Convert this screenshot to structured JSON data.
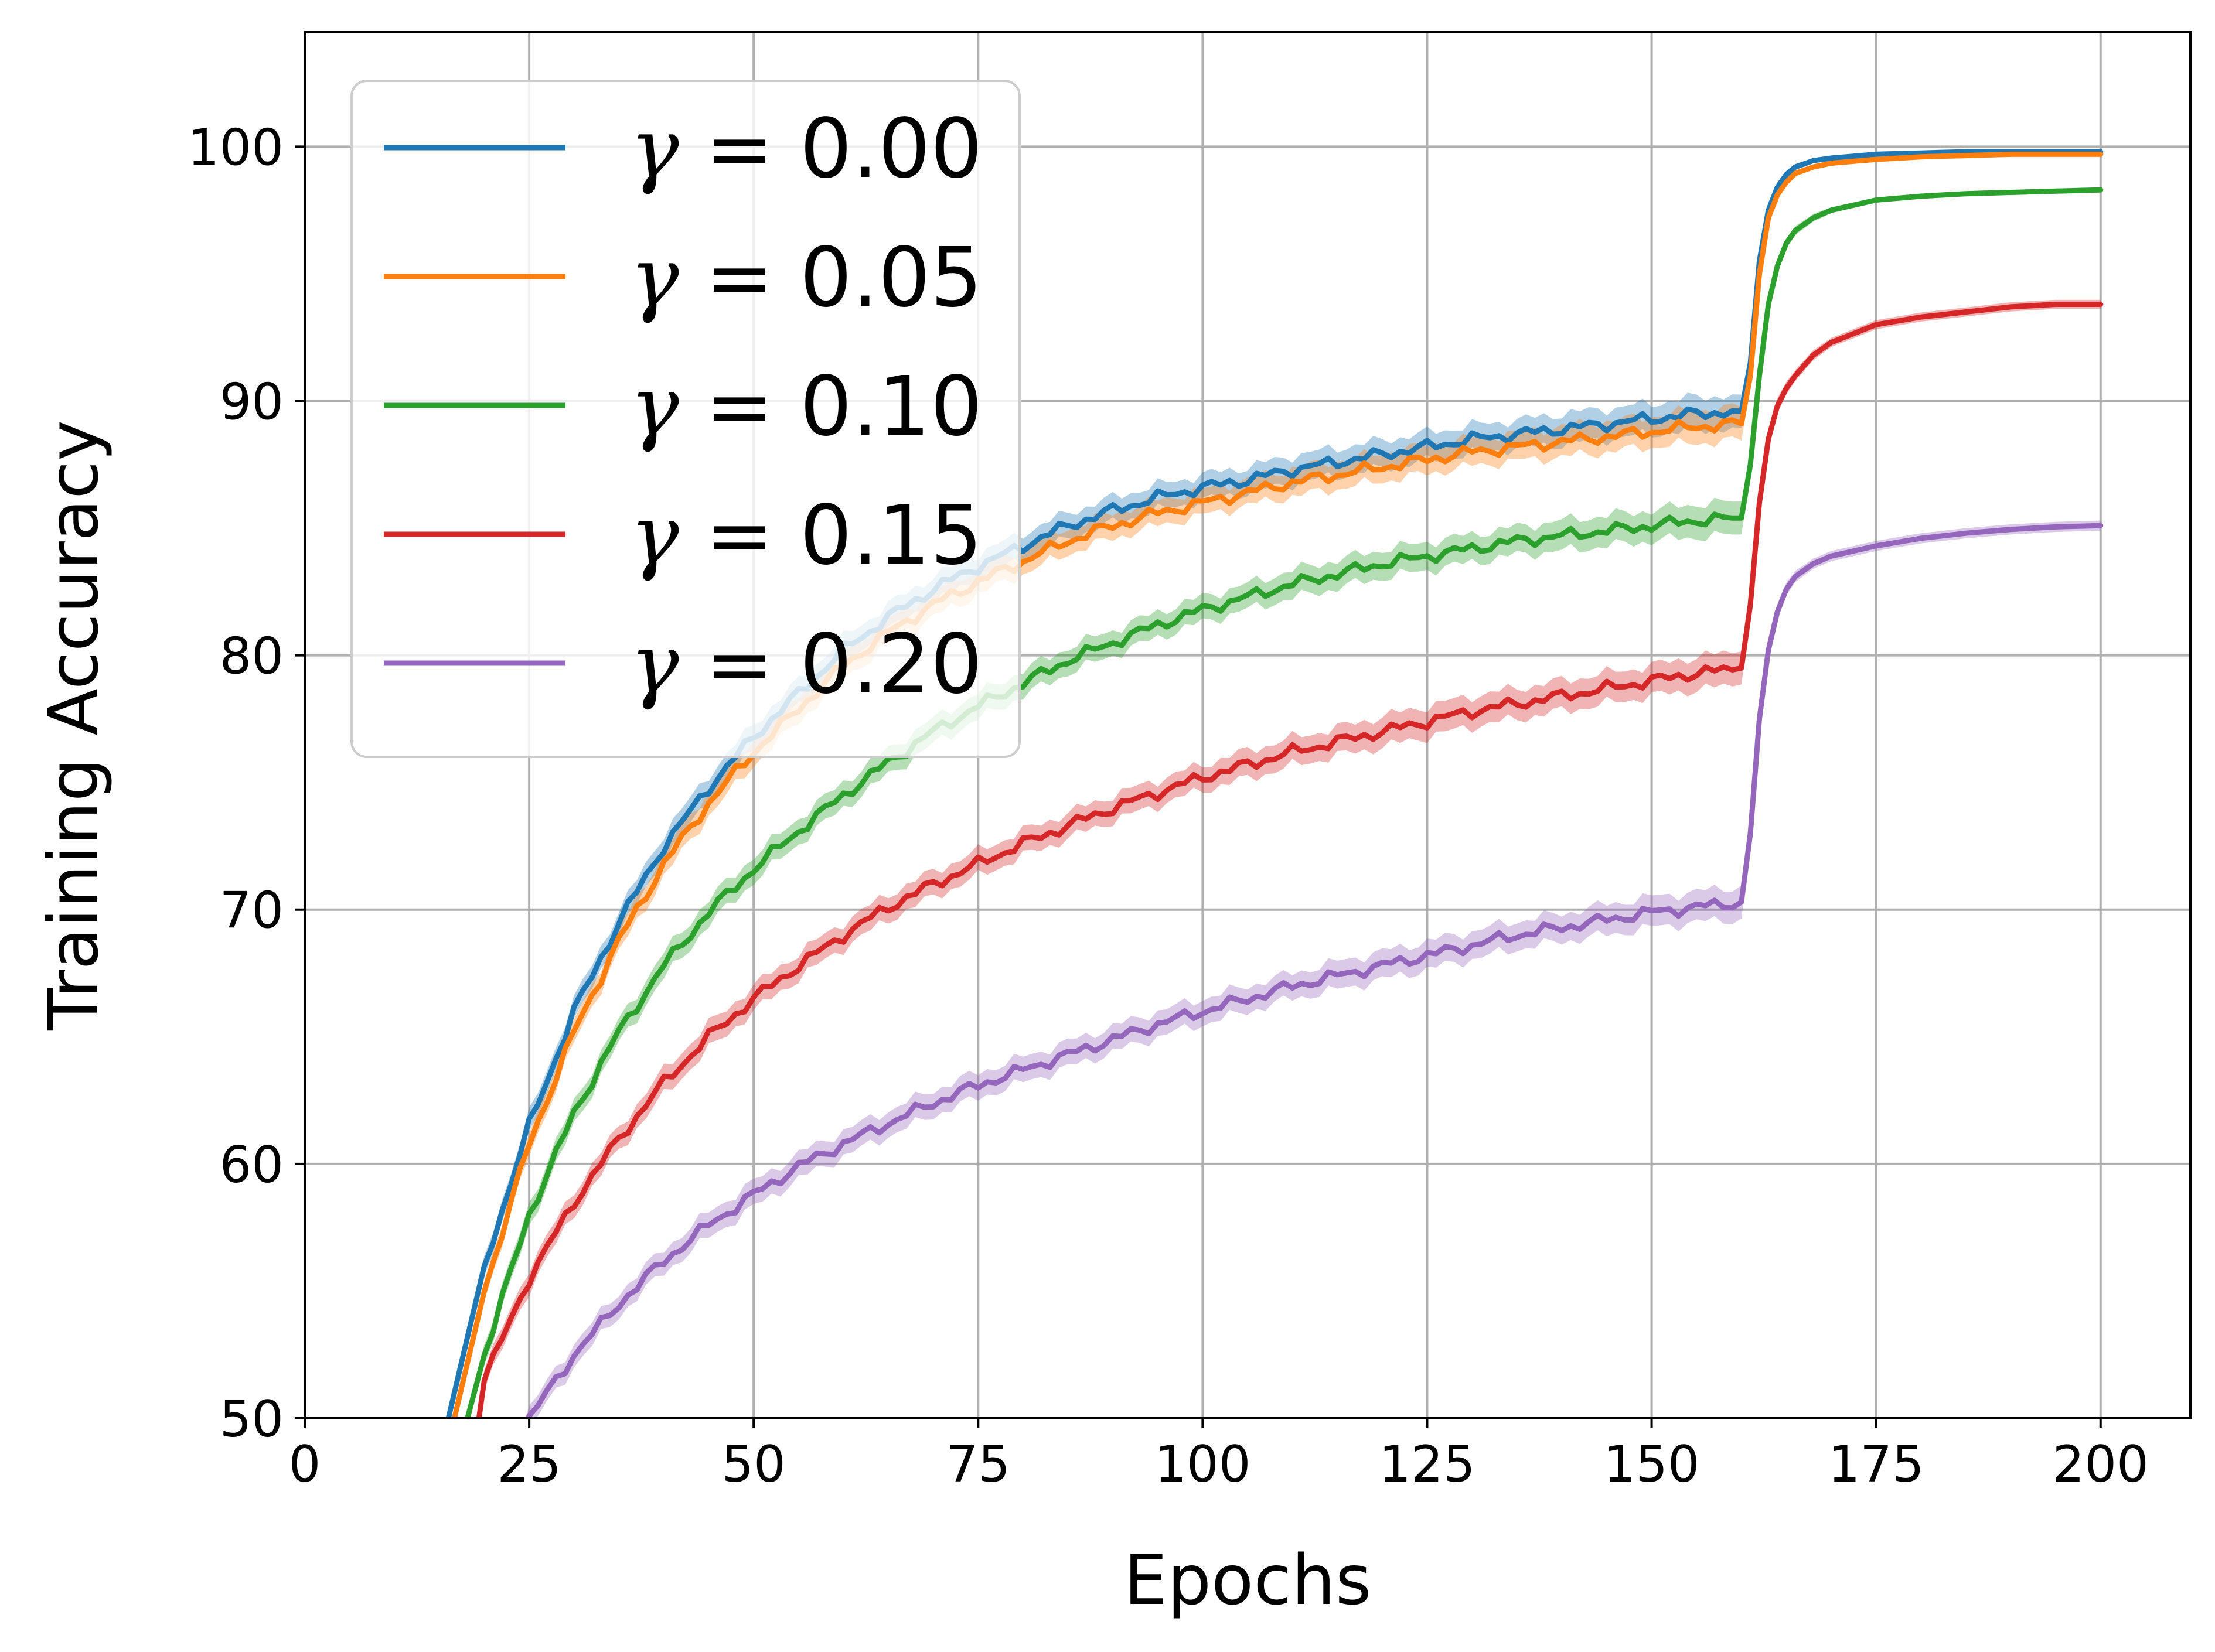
{
  "chart_data": {
    "type": "line",
    "title": "",
    "xlabel": "Epochs",
    "ylabel": "Training Accuracy",
    "xlim": [
      0,
      210
    ],
    "ylim": [
      50,
      104.5
    ],
    "xticks": [
      0,
      25,
      50,
      75,
      100,
      125,
      150,
      175,
      200
    ],
    "xtick_labels": [
      "0",
      "25",
      "50",
      "75",
      "100",
      "125",
      "150",
      "175",
      "200"
    ],
    "yticks": [
      50,
      60,
      70,
      80,
      90,
      100
    ],
    "ytick_labels": [
      "50",
      "60",
      "70",
      "80",
      "90",
      "100"
    ],
    "grid": true,
    "legend_position": "upper-left",
    "series": [
      {
        "name": "γ = 0.00",
        "symbol": "γ",
        "value_text": "0.00",
        "color": "#1f77b4",
        "x": [
          15,
          20,
          25,
          30,
          35,
          40,
          45,
          50,
          55,
          60,
          65,
          70,
          75,
          80,
          85,
          90,
          95,
          100,
          105,
          110,
          115,
          120,
          125,
          130,
          135,
          140,
          145,
          150,
          155,
          160,
          161,
          162,
          163,
          164,
          165,
          166,
          168,
          170,
          175,
          180,
          185,
          190,
          195,
          200
        ],
        "values": [
          48.5,
          56,
          61.5,
          66,
          69.5,
          72.5,
          74.8,
          76.8,
          78.5,
          80.2,
          81.5,
          82.6,
          83.5,
          84.3,
          85.1,
          85.7,
          86.2,
          86.6,
          86.9,
          87.3,
          87.6,
          87.9,
          88.2,
          88.5,
          88.7,
          88.9,
          89.1,
          89.3,
          89.5,
          89.6,
          91.5,
          95.5,
          97.5,
          98.4,
          98.9,
          99.2,
          99.45,
          99.55,
          99.7,
          99.75,
          99.8,
          99.8,
          99.8,
          99.8
        ],
        "band": [
          0.4,
          0.4,
          0.45,
          0.45,
          0.45,
          0.5,
          0.5,
          0.5,
          0.5,
          0.5,
          0.5,
          0.5,
          0.5,
          0.5,
          0.5,
          0.5,
          0.5,
          0.5,
          0.5,
          0.55,
          0.55,
          0.55,
          0.55,
          0.55,
          0.55,
          0.6,
          0.6,
          0.6,
          0.65,
          0.65,
          0.5,
          0.4,
          0.3,
          0.2,
          0.15,
          0.12,
          0.1,
          0.1,
          0.08,
          0.08,
          0.08,
          0.08,
          0.08,
          0.08
        ]
      },
      {
        "name": "γ = 0.05",
        "symbol": "γ",
        "value_text": "0.05",
        "color": "#ff7f0e",
        "x": [
          15,
          20,
          25,
          30,
          35,
          40,
          45,
          50,
          55,
          60,
          65,
          70,
          75,
          80,
          85,
          90,
          95,
          100,
          105,
          110,
          115,
          120,
          125,
          130,
          135,
          140,
          145,
          150,
          155,
          160,
          161,
          162,
          163,
          164,
          165,
          166,
          168,
          170,
          175,
          180,
          185,
          190,
          195,
          200
        ],
        "values": [
          47.5,
          55,
          60.8,
          65.2,
          68.8,
          71.8,
          74.2,
          76.2,
          77.9,
          79.6,
          80.9,
          82,
          82.9,
          83.7,
          84.5,
          85.1,
          85.6,
          86,
          86.4,
          86.8,
          87.1,
          87.4,
          87.7,
          88,
          88.2,
          88.4,
          88.6,
          88.8,
          89,
          89.1,
          91,
          95,
          97.2,
          98.1,
          98.6,
          98.95,
          99.2,
          99.35,
          99.5,
          99.6,
          99.65,
          99.7,
          99.7,
          99.7
        ],
        "band": [
          0.4,
          0.4,
          0.45,
          0.45,
          0.45,
          0.5,
          0.5,
          0.5,
          0.5,
          0.5,
          0.5,
          0.5,
          0.5,
          0.5,
          0.5,
          0.5,
          0.5,
          0.5,
          0.5,
          0.55,
          0.55,
          0.55,
          0.55,
          0.55,
          0.55,
          0.6,
          0.6,
          0.6,
          0.65,
          0.65,
          0.5,
          0.4,
          0.3,
          0.2,
          0.15,
          0.12,
          0.1,
          0.1,
          0.08,
          0.08,
          0.08,
          0.08,
          0.08,
          0.08
        ]
      },
      {
        "name": "γ = 0.10",
        "symbol": "γ",
        "value_text": "0.10",
        "color": "#2ca02c",
        "x": [
          17,
          20,
          25,
          30,
          35,
          40,
          45,
          50,
          55,
          60,
          65,
          70,
          75,
          80,
          85,
          90,
          95,
          100,
          105,
          110,
          115,
          120,
          125,
          130,
          135,
          140,
          145,
          150,
          155,
          160,
          161,
          162,
          163,
          164,
          165,
          166,
          168,
          170,
          175,
          180,
          185,
          190,
          195,
          200
        ],
        "values": [
          48.5,
          52.5,
          58,
          62,
          65.2,
          67.8,
          69.9,
          71.6,
          73.1,
          74.5,
          75.8,
          77,
          78,
          78.9,
          79.8,
          80.5,
          81.2,
          81.8,
          82.3,
          82.8,
          83.2,
          83.6,
          83.9,
          84.2,
          84.5,
          84.7,
          84.9,
          85.1,
          85.3,
          85.4,
          87.5,
          91,
          93.8,
          95.3,
          96.2,
          96.7,
          97.2,
          97.5,
          97.9,
          98.05,
          98.15,
          98.2,
          98.25,
          98.3
        ],
        "band": [
          0.4,
          0.4,
          0.45,
          0.45,
          0.45,
          0.5,
          0.5,
          0.5,
          0.5,
          0.5,
          0.5,
          0.5,
          0.5,
          0.5,
          0.5,
          0.5,
          0.5,
          0.5,
          0.5,
          0.55,
          0.55,
          0.55,
          0.55,
          0.55,
          0.55,
          0.6,
          0.6,
          0.6,
          0.65,
          0.65,
          0.5,
          0.4,
          0.3,
          0.25,
          0.2,
          0.18,
          0.15,
          0.12,
          0.1,
          0.1,
          0.1,
          0.1,
          0.1,
          0.1
        ]
      },
      {
        "name": "γ = 0.15",
        "symbol": "γ",
        "value_text": "0.15",
        "color": "#d62728",
        "x": [
          19,
          20,
          25,
          30,
          35,
          40,
          45,
          50,
          55,
          60,
          65,
          70,
          75,
          80,
          85,
          90,
          95,
          100,
          105,
          110,
          115,
          120,
          125,
          130,
          135,
          140,
          145,
          150,
          155,
          160,
          161,
          162,
          163,
          164,
          165,
          166,
          168,
          170,
          175,
          180,
          185,
          190,
          195,
          200
        ],
        "values": [
          49,
          51.5,
          55.5,
          58.5,
          61,
          63.2,
          65,
          66.5,
          67.8,
          69,
          70.1,
          71,
          71.8,
          72.6,
          73.3,
          74,
          74.6,
          75.2,
          75.7,
          76.2,
          76.6,
          77,
          77.4,
          77.8,
          78.1,
          78.4,
          78.7,
          79,
          79.3,
          79.5,
          82,
          86,
          88.5,
          89.8,
          90.5,
          91,
          91.8,
          92.3,
          93,
          93.3,
          93.5,
          93.7,
          93.8,
          93.8
        ],
        "band": [
          0.4,
          0.4,
          0.45,
          0.45,
          0.45,
          0.5,
          0.5,
          0.5,
          0.5,
          0.5,
          0.5,
          0.5,
          0.5,
          0.5,
          0.5,
          0.5,
          0.5,
          0.5,
          0.55,
          0.55,
          0.55,
          0.6,
          0.6,
          0.6,
          0.6,
          0.6,
          0.6,
          0.6,
          0.65,
          0.65,
          0.55,
          0.45,
          0.35,
          0.3,
          0.25,
          0.22,
          0.2,
          0.18,
          0.18,
          0.18,
          0.18,
          0.18,
          0.18,
          0.18
        ]
      },
      {
        "name": "γ = 0.20",
        "symbol": "γ",
        "value_text": "0.20",
        "color": "#9467bd",
        "x": [
          24,
          25,
          30,
          35,
          40,
          45,
          50,
          55,
          60,
          65,
          70,
          75,
          80,
          85,
          90,
          95,
          100,
          105,
          110,
          115,
          120,
          125,
          130,
          135,
          140,
          145,
          150,
          155,
          160,
          161,
          162,
          163,
          164,
          165,
          166,
          168,
          170,
          175,
          180,
          185,
          190,
          195,
          200
        ],
        "values": [
          49.2,
          50,
          52.5,
          54.5,
          56.2,
          57.6,
          58.8,
          59.9,
          60.8,
          61.6,
          62.4,
          63.1,
          63.7,
          64.3,
          64.9,
          65.5,
          66,
          66.5,
          67,
          67.4,
          67.8,
          68.2,
          68.6,
          69,
          69.3,
          69.6,
          69.9,
          70.1,
          70.3,
          73,
          77.5,
          80.2,
          81.7,
          82.6,
          83.1,
          83.6,
          83.9,
          84.3,
          84.6,
          84.8,
          84.95,
          85.05,
          85.1
        ],
        "band": [
          0.4,
          0.4,
          0.45,
          0.45,
          0.45,
          0.5,
          0.5,
          0.5,
          0.5,
          0.5,
          0.5,
          0.5,
          0.5,
          0.5,
          0.5,
          0.5,
          0.5,
          0.5,
          0.5,
          0.55,
          0.55,
          0.55,
          0.55,
          0.55,
          0.55,
          0.6,
          0.6,
          0.6,
          0.65,
          0.55,
          0.45,
          0.35,
          0.3,
          0.25,
          0.22,
          0.2,
          0.2,
          0.2,
          0.2,
          0.2,
          0.2,
          0.2,
          0.2
        ]
      }
    ]
  }
}
